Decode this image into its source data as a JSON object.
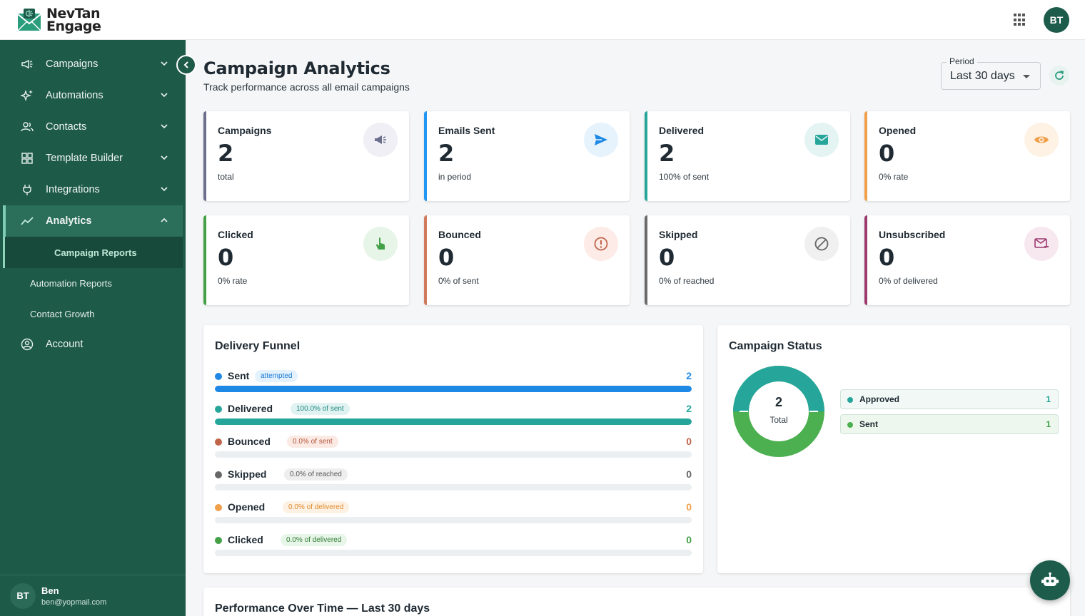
{
  "app": {
    "name_line1": "NevTan",
    "name_line2": "Engage",
    "user_initials": "BT"
  },
  "sidebar": {
    "items": [
      {
        "label": "Campaigns",
        "icon": "megaphone-icon"
      },
      {
        "label": "Automations",
        "icon": "sparkle-icon"
      },
      {
        "label": "Contacts",
        "icon": "users-icon"
      },
      {
        "label": "Template Builder",
        "icon": "grid-icon"
      },
      {
        "label": "Integrations",
        "icon": "plug-icon"
      },
      {
        "label": "Analytics",
        "icon": "trend-icon"
      }
    ],
    "sub_items": [
      {
        "label": "Campaign Reports"
      },
      {
        "label": "Automation Reports"
      },
      {
        "label": "Contact Growth"
      }
    ],
    "account": {
      "label": "Account",
      "icon": "account-circle-icon"
    },
    "user": {
      "initials": "BT",
      "name": "Ben",
      "email": "ben@yopmail.com"
    }
  },
  "header": {
    "title": "Campaign Analytics",
    "subtitle": "Track performance across all email campaigns",
    "period_label": "Period",
    "period_value": "Last 30 days"
  },
  "stats": [
    {
      "title": "Campaigns",
      "value": "2",
      "sub": "total",
      "icon": "megaphone-icon",
      "color": "#6b6f8c"
    },
    {
      "title": "Emails Sent",
      "value": "2",
      "sub": "in period",
      "icon": "send-icon",
      "color": "#2196f3"
    },
    {
      "title": "Delivered",
      "value": "2",
      "sub": "100% of sent",
      "icon": "mail-icon",
      "color": "#26a69a"
    },
    {
      "title": "Opened",
      "value": "0",
      "sub": "0% rate",
      "icon": "eye-icon",
      "color": "#f0a04b"
    },
    {
      "title": "Clicked",
      "value": "0",
      "sub": "0% rate",
      "icon": "pointer-icon",
      "color": "#43a047"
    },
    {
      "title": "Bounced",
      "value": "0",
      "sub": "0% of sent",
      "icon": "alert-icon",
      "color": "#d17a5e"
    },
    {
      "title": "Skipped",
      "value": "0",
      "sub": "0% of reached",
      "icon": "block-icon",
      "color": "#6b6b6b"
    },
    {
      "title": "Unsubscribed",
      "value": "0",
      "sub": "0% of delivered",
      "icon": "unsubscribe-icon",
      "color": "#9c3a6e"
    }
  ],
  "funnel": {
    "title": "Delivery Funnel",
    "rows": [
      {
        "name": "Sent",
        "chip": "attempted",
        "count": "2",
        "fraction": 1.0,
        "color": "#1e88e5",
        "chip_bg": "#e3f2fd",
        "chip_fg": "#1976d2"
      },
      {
        "name": "Delivered",
        "chip": "100.0% of sent",
        "count": "2",
        "fraction": 1.0,
        "color": "#26a69a",
        "chip_bg": "#e0f2f1",
        "chip_fg": "#1f8a7f"
      },
      {
        "name": "Bounced",
        "chip": "0.0% of sent",
        "count": "0",
        "fraction": 0,
        "color": "#c0654a",
        "chip_bg": "#fbe9e4",
        "chip_fg": "#b5553a"
      },
      {
        "name": "Skipped",
        "chip": "0.0% of reached",
        "count": "0",
        "fraction": 0,
        "color": "#666666",
        "chip_bg": "#eeeeee",
        "chip_fg": "#555555"
      },
      {
        "name": "Opened",
        "chip": "0.0% of delivered",
        "count": "0",
        "fraction": 0,
        "color": "#f0a04b",
        "chip_bg": "#fdf1e3",
        "chip_fg": "#e08a2b"
      },
      {
        "name": "Clicked",
        "chip": "0.0% of delivered",
        "count": "0",
        "fraction": 0,
        "color": "#43a047",
        "chip_bg": "#e8f5e9",
        "chip_fg": "#2e7d32"
      }
    ]
  },
  "status": {
    "title": "Campaign Status",
    "total_value": "2",
    "total_label": "Total",
    "items": [
      {
        "name": "Approved",
        "count": "1",
        "color": "#26a69a"
      },
      {
        "name": "Sent",
        "count": "1",
        "color": "#4caf50"
      }
    ]
  },
  "performance": {
    "title": "Performance Over Time — Last 30 days"
  }
}
